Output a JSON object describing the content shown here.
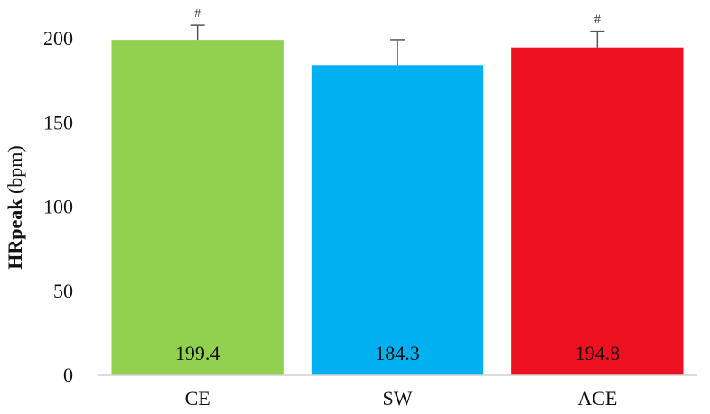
{
  "chart_data": {
    "type": "bar",
    "categories": [
      "CE",
      "SW",
      "ACE"
    ],
    "values": [
      199.4,
      184.3,
      194.8
    ],
    "value_labels": [
      "199.4",
      "184.3",
      "194.8"
    ],
    "error_upper": [
      208.0,
      199.5,
      204.5
    ],
    "significance_markers": [
      "#",
      "",
      "#"
    ],
    "colors": [
      "#92d050",
      "#00b0f0",
      "#ee1122"
    ],
    "ylabel_bold": "HRpeak",
    "ylabel_rest": " (bpm)",
    "ylim": [
      0,
      200
    ],
    "yticks": [
      0,
      50,
      100,
      150,
      200
    ],
    "ytick_labels": [
      "0",
      "50",
      "100",
      "150",
      "200"
    ],
    "grid": false,
    "legend": "none"
  }
}
